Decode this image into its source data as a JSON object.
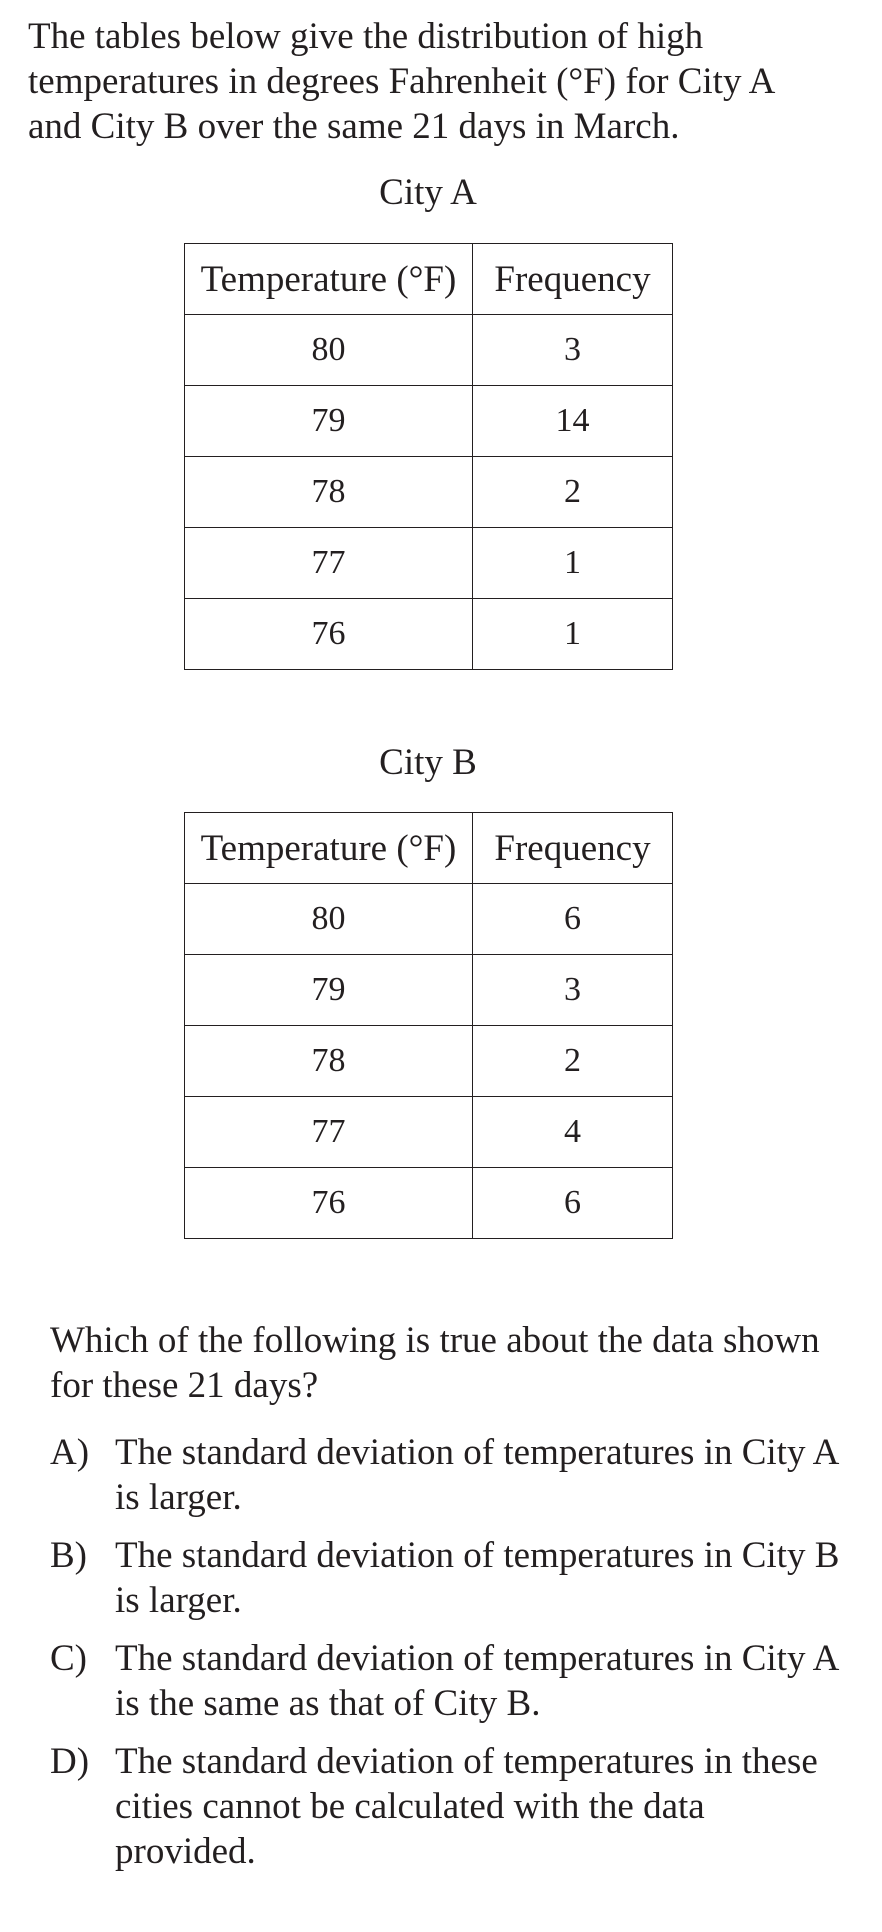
{
  "intro": "The tables below give the distribution of high temperatures in degrees Fahrenheit (°F) for City A and City B over the same 21 days in March.",
  "tables": [
    {
      "title": "City A",
      "headers": [
        "Temperature (°F)",
        "Frequency"
      ],
      "rows": [
        [
          "80",
          "3"
        ],
        [
          "79",
          "14"
        ],
        [
          "78",
          "2"
        ],
        [
          "77",
          "1"
        ],
        [
          "76",
          "1"
        ]
      ]
    },
    {
      "title": "City B",
      "headers": [
        "Temperature (°F)",
        "Frequency"
      ],
      "rows": [
        [
          "80",
          "6"
        ],
        [
          "79",
          "3"
        ],
        [
          "78",
          "2"
        ],
        [
          "77",
          "4"
        ],
        [
          "76",
          "6"
        ]
      ]
    }
  ],
  "question": "Which of the following is true about the data shown for these 21 days?",
  "choices": [
    {
      "letter": "A)",
      "text": "The standard deviation of temperatures in City A is larger."
    },
    {
      "letter": "B)",
      "text": "The standard deviation of temperatures in City B is larger."
    },
    {
      "letter": "C)",
      "text": "The standard deviation of temperatures in City A is the same as that of City B."
    },
    {
      "letter": "D)",
      "text": "The standard deviation of temperatures in these cities cannot be calculated with the data provided."
    }
  ]
}
